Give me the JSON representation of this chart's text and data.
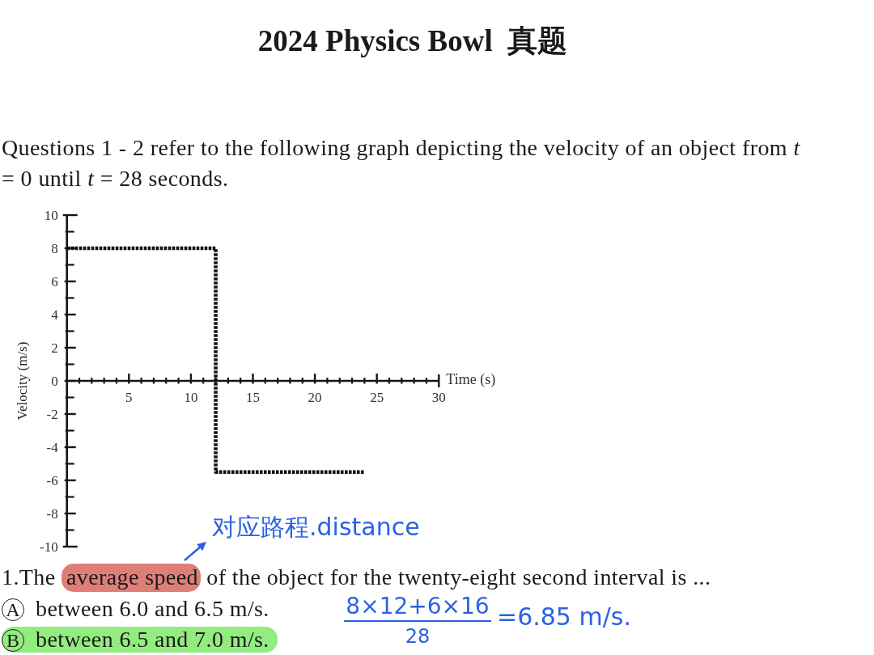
{
  "chart_data": {
    "type": "line",
    "title": "2024 Physics Bowl  真题",
    "subtitle": "Questions 1 - 2 refer to the following graph depicting the velocity of an object from *t* = 0 until *t* = 28 seconds.",
    "xlabel": "Time (s)",
    "ylabel": "Velocity (m/s)",
    "x": [
      0,
      12,
      12,
      24
    ],
    "series": [
      {
        "color": "#111111",
        "values": [
          8,
          8,
          -5.5,
          -5.5
        ]
      }
    ],
    "xlim": [
      0,
      30
    ],
    "ylim": [
      -10,
      10
    ],
    "xticks": [
      5,
      10,
      15,
      20,
      25,
      30
    ],
    "yticks": [
      -10,
      -8,
      -6,
      -4,
      -2,
      0,
      2,
      4,
      6,
      8,
      10
    ],
    "line_style": "dotted",
    "annotations": [
      "1.The average speed of the object for the twenty-eight second interval is ...",
      "A between 6.0 and 6.5 m/s.",
      "B between 6.5 and 7.0 m/s.",
      "对应路程.distance",
      "8×12+6×16",
      "28",
      "=6.85 m/s."
    ]
  }
}
